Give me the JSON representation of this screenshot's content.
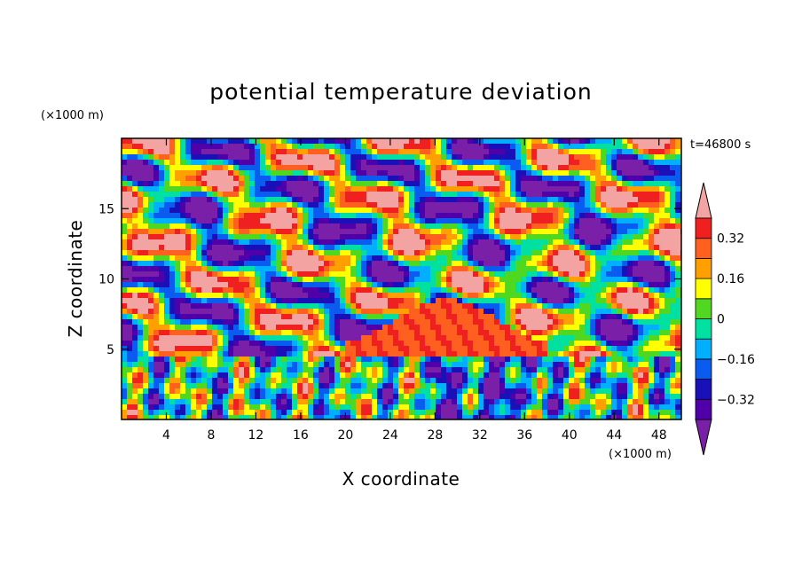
{
  "chart_data": {
    "type": "heatmap",
    "title": "potential temperature deviation",
    "xlabel": "X coordinate",
    "ylabel": "Z coordinate",
    "x_unit": "(×1000 m)",
    "y_unit": "(×1000 m)",
    "time_label": "t=46800 s",
    "xlim": [
      0,
      50
    ],
    "ylim": [
      0,
      20
    ],
    "x_ticks": [
      4,
      8,
      12,
      16,
      20,
      24,
      28,
      32,
      36,
      40,
      44,
      48
    ],
    "y_ticks": [
      5,
      10,
      15
    ],
    "colorbar": {
      "levels": [
        -0.4,
        -0.32,
        -0.24,
        -0.16,
        -0.08,
        0,
        0.08,
        0.16,
        0.24,
        0.32,
        0.4
      ],
      "tick_labels": [
        "0.32",
        "0.16",
        "0",
        "−0.16",
        "−0.32"
      ],
      "tick_values": [
        0.32,
        0.16,
        0,
        -0.16,
        -0.32
      ],
      "colors": [
        "#7a1fa8",
        "#4f00a8",
        "#1a10b8",
        "#0a5cf0",
        "#00b0ff",
        "#00e0a0",
        "#50d820",
        "#ffff00",
        "#ffa000",
        "#ff6020",
        "#f02020",
        "#f4a3a3"
      ]
    }
  }
}
